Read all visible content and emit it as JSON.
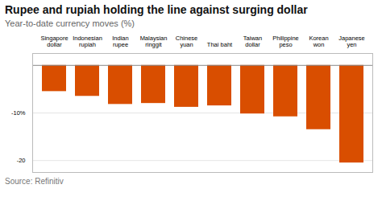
{
  "chart_data": {
    "type": "bar",
    "title": "Rupee and rupiah holding the line against surging dollar",
    "subtitle": "Year-to-date currency moves (%)",
    "source": "Source: Refinitiv",
    "categories": [
      "Singapore\ndollar",
      "Indonesian\nrupiah",
      "Indian\nrupee",
      "Malaysian\nringgit",
      "Chinese\nyuan",
      "Thai baht",
      "Taiwan\ndollar",
      "Philippine\npeso",
      "Korean\nwon",
      "Japanese\nyen"
    ],
    "values": [
      -5.5,
      -6.5,
      -8.2,
      -8.0,
      -8.8,
      -8.5,
      -10.2,
      -10.8,
      -13.5,
      -20.5
    ],
    "color": "#d94e00",
    "ylim": [
      -22.5,
      2.5
    ],
    "yticks": [
      {
        "value": -10,
        "label": "-10%"
      },
      -20
    ],
    "grid": true
  }
}
